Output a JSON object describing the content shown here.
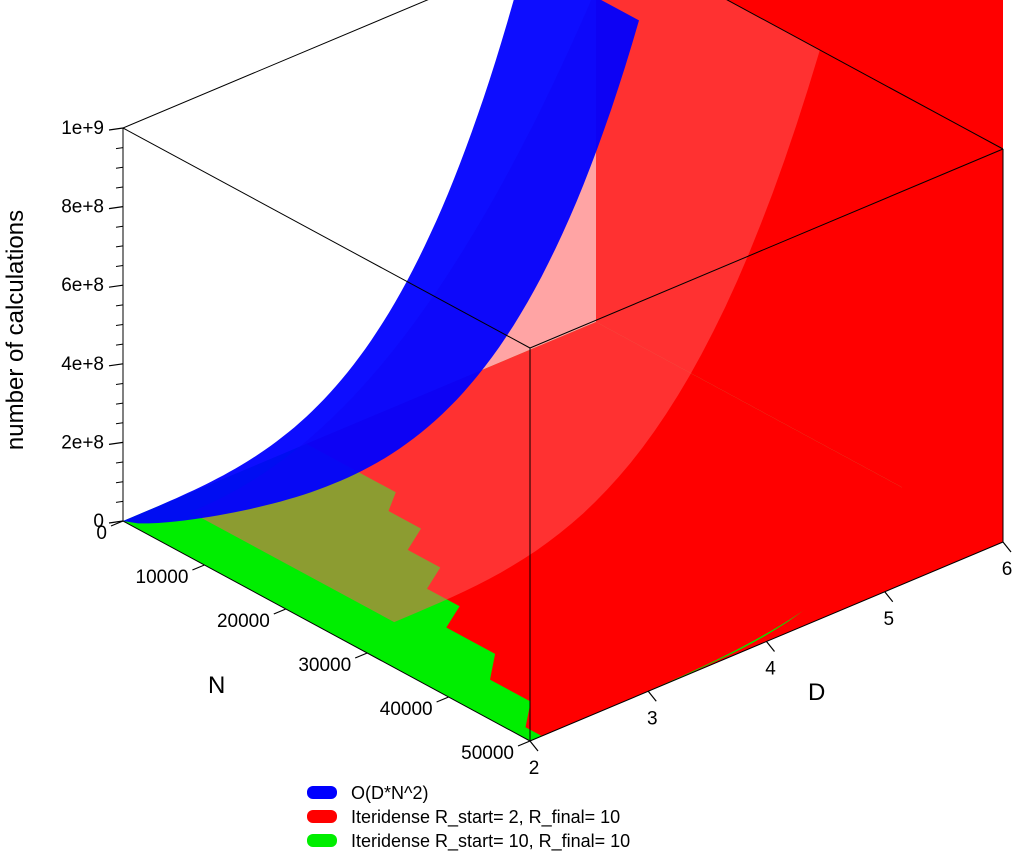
{
  "chart_data": {
    "type": "surface3d",
    "title": "",
    "zlabel": "number of calculations",
    "xlabel": "N",
    "ylabel": "D",
    "z_ticks": [
      "0",
      "2e+8",
      "4e+8",
      "6e+8",
      "8e+8",
      "1e+9"
    ],
    "z_range": [
      0,
      1000000000
    ],
    "n_ticks": [
      {
        "value": 0,
        "label": "0"
      },
      {
        "value": 10000,
        "label": "10000"
      },
      {
        "value": 20000,
        "label": "20000"
      },
      {
        "value": 30000,
        "label": "30000"
      },
      {
        "value": 40000,
        "label": "40000"
      },
      {
        "value": 50000,
        "label": "50000"
      }
    ],
    "n_range": [
      0,
      50000
    ],
    "d_ticks": [
      {
        "value": 2,
        "label": "2"
      },
      {
        "value": 3,
        "label": "3"
      },
      {
        "value": 4,
        "label": "4"
      },
      {
        "value": 5,
        "label": "5"
      },
      {
        "value": 6,
        "label": "6"
      }
    ],
    "d_range": [
      2,
      6
    ],
    "series": [
      {
        "name": "O(D*N^2)",
        "color": "#0000ff"
      },
      {
        "name": "Iteridense R_start= 2, R_final= 10",
        "color": "#ff0000"
      },
      {
        "name": "Iteridense R_start= 10, R_final= 10",
        "color": "#00ee00"
      }
    ],
    "legend_position": "bottom"
  }
}
